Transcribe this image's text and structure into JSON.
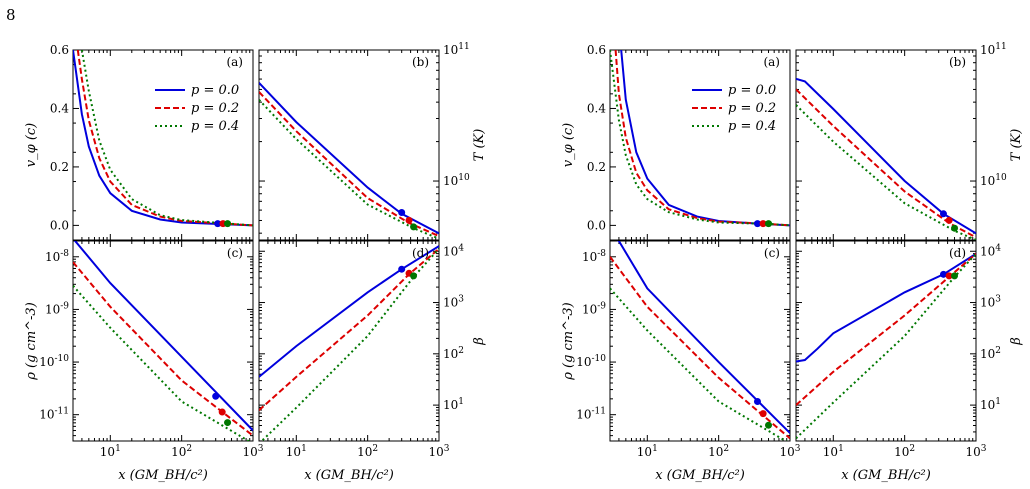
{
  "page_number": "8",
  "colors": {
    "p0": "#0000dd",
    "p02": "#dd0000",
    "p04": "#007700"
  },
  "chart_data": [
    {
      "type": "line",
      "figure": "left",
      "panels": {
        "a": {
          "tag": "(a)",
          "ylabel": "v_φ (c)",
          "ylim": [
            -0.05,
            0.6
          ],
          "yticks": [
            "0.0",
            "0.2",
            "0.4",
            "0.6"
          ],
          "series": [
            {
              "name": "p = 0.0",
              "x": [
                3,
                4,
                5,
                7,
                10,
                20,
                50,
                100,
                300,
                1000
              ],
              "y": [
                0.6,
                0.38,
                0.27,
                0.17,
                0.11,
                0.05,
                0.02,
                0.01,
                0.005,
                0.0
              ]
            },
            {
              "name": "p = 0.2",
              "x": [
                3.5,
                4,
                5,
                7,
                10,
                20,
                50,
                100,
                400,
                1000
              ],
              "y": [
                0.6,
                0.5,
                0.36,
                0.23,
                0.15,
                0.07,
                0.03,
                0.015,
                0.006,
                0.0
              ]
            },
            {
              "name": "p = 0.4",
              "x": [
                4,
                5,
                7,
                10,
                20,
                50,
                100,
                450,
                1000
              ],
              "y": [
                0.6,
                0.46,
                0.29,
                0.19,
                0.09,
                0.035,
                0.018,
                0.006,
                0.0
              ]
            }
          ],
          "markers": [
            {
              "x": 320,
              "y": 0.006
            },
            {
              "x": 380,
              "y": 0.006
            },
            {
              "x": 440,
              "y": 0.006
            }
          ]
        },
        "b": {
          "tag": "(b)",
          "ylabel": "T (K)",
          "ylim_log": [
            9.55,
            11.0
          ],
          "yticks": [
            "10^10",
            "10^11"
          ],
          "series": [
            {
              "name": "p = 0.0",
              "x": [
                3,
                10,
                100,
                300,
                1000
              ],
              "y_log": [
                10.75,
                10.45,
                9.95,
                9.75,
                9.6
              ]
            },
            {
              "name": "p = 0.2",
              "x": [
                3,
                10,
                100,
                380,
                1000
              ],
              "y_log": [
                10.68,
                10.38,
                9.87,
                9.68,
                9.58
              ]
            },
            {
              "name": "p = 0.4",
              "x": [
                3,
                10,
                100,
                440,
                1000
              ],
              "y_log": [
                10.62,
                10.32,
                9.82,
                9.64,
                9.56
              ]
            }
          ],
          "markers": [
            {
              "x": 300,
              "y_log": 9.76
            },
            {
              "x": 380,
              "y_log": 9.7
            },
            {
              "x": 440,
              "y_log": 9.65
            }
          ]
        },
        "c": {
          "tag": "(c)",
          "ylabel": "ρ (g cm^-3)",
          "ylim_log": [
            -11.5,
            -7.7
          ],
          "yticks": [
            "10^-11",
            "10^-10",
            "10^-9",
            "10^-8"
          ],
          "series": [
            {
              "name": "p = 0.0",
              "x": [
                3,
                10,
                100,
                1000
              ],
              "y_log": [
                -7.65,
                -8.5,
                -9.9,
                -11.3
              ]
            },
            {
              "name": "p = 0.2",
              "x": [
                3,
                10,
                100,
                1000
              ],
              "y_log": [
                -8.1,
                -8.95,
                -10.35,
                -11.4
              ]
            },
            {
              "name": "p = 0.4",
              "x": [
                3,
                10,
                100,
                1000
              ],
              "y_log": [
                -8.55,
                -9.35,
                -10.75,
                -11.55
              ]
            }
          ],
          "markers": [
            {
              "x": 300,
              "y_log": -10.65
            },
            {
              "x": 370,
              "y_log": -10.95
            },
            {
              "x": 440,
              "y_log": -11.15
            }
          ]
        },
        "d": {
          "tag": "(d)",
          "ylabel": "β",
          "ylim_log": [
            0.3,
            4.2
          ],
          "yticks": [
            "10^1",
            "10^2",
            "10^3",
            "10^4"
          ],
          "series": [
            {
              "name": "p = 0.0",
              "x": [
                3,
                10,
                100,
                300,
                1000
              ],
              "y_log": [
                1.55,
                2.15,
                3.2,
                3.65,
                4.1
              ]
            },
            {
              "name": "p = 0.2",
              "x": [
                3,
                10,
                100,
                380,
                1000
              ],
              "y_log": [
                0.9,
                1.55,
                2.75,
                3.55,
                4.05
              ]
            },
            {
              "name": "p = 0.4",
              "x": [
                3,
                10,
                100,
                440,
                1000
              ],
              "y_log": [
                0.25,
                0.95,
                2.35,
                3.5,
                4.05
              ]
            }
          ],
          "markers": [
            {
              "x": 300,
              "y_log": 3.65
            },
            {
              "x": 380,
              "y_log": 3.57
            },
            {
              "x": 440,
              "y_log": 3.52
            }
          ]
        }
      }
    },
    {
      "type": "line",
      "figure": "right",
      "panels": {
        "a": {
          "tag": "(a)",
          "ylabel": "v_φ (c)",
          "ylim": [
            -0.05,
            0.6
          ],
          "yticks": [
            "0.0",
            "0.2",
            "0.4",
            "0.6"
          ],
          "series": [
            {
              "name": "p = 0.0",
              "x": [
                4.3,
                5,
                7,
                10,
                20,
                50,
                100,
                350,
                1000
              ],
              "y": [
                0.6,
                0.43,
                0.25,
                0.16,
                0.07,
                0.03,
                0.015,
                0.006,
                0.0
              ]
            },
            {
              "name": "p = 0.2",
              "x": [
                3.6,
                4,
                5,
                7,
                10,
                20,
                50,
                100,
                420,
                1000
              ],
              "y": [
                0.6,
                0.45,
                0.3,
                0.18,
                0.12,
                0.055,
                0.025,
                0.013,
                0.006,
                0.0
              ]
            },
            {
              "name": "p = 0.4",
              "x": [
                3,
                4,
                5,
                7,
                10,
                20,
                50,
                100,
                500,
                1000
              ],
              "y": [
                0.6,
                0.36,
                0.24,
                0.14,
                0.09,
                0.045,
                0.02,
                0.01,
                0.005,
                0.0
              ]
            }
          ],
          "markers": [
            {
              "x": 350,
              "y": 0.006
            },
            {
              "x": 420,
              "y": 0.006
            },
            {
              "x": 500,
              "y": 0.006
            }
          ]
        },
        "b": {
          "tag": "(b)",
          "ylabel": "T (K)",
          "ylim_log": [
            9.55,
            11.0
          ],
          "yticks": [
            "10^10",
            "10^11"
          ],
          "series": [
            {
              "name": "p = 0.0",
              "x": [
                3,
                4,
                10,
                100,
                350,
                1000
              ],
              "y_log": [
                10.78,
                10.76,
                10.55,
                10.0,
                9.75,
                9.6
              ]
            },
            {
              "name": "p = 0.2",
              "x": [
                3,
                10,
                100,
                420,
                1000
              ],
              "y_log": [
                10.7,
                10.42,
                9.92,
                9.68,
                9.57
              ]
            },
            {
              "name": "p = 0.4",
              "x": [
                3,
                10,
                100,
                500,
                1000
              ],
              "y_log": [
                10.58,
                10.3,
                9.83,
                9.62,
                9.55
              ]
            }
          ],
          "markers": [
            {
              "x": 350,
              "y_log": 9.75
            },
            {
              "x": 420,
              "y_log": 9.7
            },
            {
              "x": 500,
              "y_log": 9.64
            }
          ]
        },
        "c": {
          "tag": "(c)",
          "ylabel": "ρ (g cm^-3)",
          "ylim_log": [
            -11.5,
            -7.7
          ],
          "yticks": [
            "10^-11",
            "10^-10",
            "10^-9",
            "10^-8"
          ],
          "series": [
            {
              "name": "p = 0.0",
              "x": [
                3,
                4,
                10,
                100,
                1000
              ],
              "y_log": [
                -7.6,
                -7.7,
                -8.6,
                -10.0,
                -11.35
              ]
            },
            {
              "name": "p = 0.2",
              "x": [
                3,
                10,
                100,
                1000
              ],
              "y_log": [
                -8.0,
                -8.95,
                -10.3,
                -11.45
              ]
            },
            {
              "name": "p = 0.4",
              "x": [
                3,
                10,
                100,
                1000
              ],
              "y_log": [
                -8.6,
                -9.4,
                -10.75,
                -11.55
              ]
            }
          ],
          "markers": [
            {
              "x": 350,
              "y_log": -10.75
            },
            {
              "x": 420,
              "y_log": -10.98
            },
            {
              "x": 500,
              "y_log": -11.2
            }
          ]
        },
        "d": {
          "tag": "(d)",
          "ylabel": "β",
          "ylim_log": [
            0.3,
            4.2
          ],
          "yticks": [
            "10^1",
            "10^2",
            "10^3",
            "10^4"
          ],
          "series": [
            {
              "name": "p = 0.0",
              "x": [
                3,
                4,
                6,
                10,
                100,
                350,
                1000
              ],
              "y_log": [
                1.85,
                1.88,
                2.1,
                2.4,
                3.2,
                3.55,
                3.95
              ]
            },
            {
              "name": "p = 0.2",
              "x": [
                3,
                10,
                100,
                420,
                1000
              ],
              "y_log": [
                1.0,
                1.65,
                2.75,
                3.5,
                3.95
              ]
            },
            {
              "name": "p = 0.4",
              "x": [
                3,
                10,
                100,
                500,
                1000
              ],
              "y_log": [
                0.35,
                1.05,
                2.35,
                3.5,
                3.95
              ]
            }
          ],
          "markers": [
            {
              "x": 350,
              "y_log": 3.55
            },
            {
              "x": 420,
              "y_log": 3.52
            },
            {
              "x": 500,
              "y_log": 3.52
            }
          ]
        }
      }
    }
  ]
}
